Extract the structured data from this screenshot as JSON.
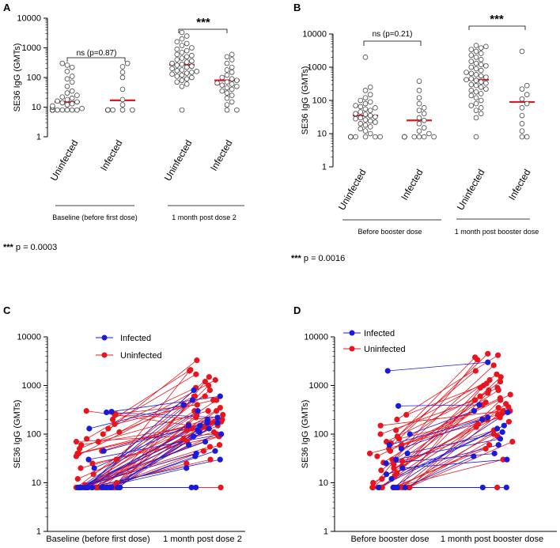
{
  "chart_data": [
    {
      "panel": "A",
      "type": "scatter",
      "ylabel": "SE36 IgG (GMTs)",
      "yscale": "log",
      "ylim": [
        1,
        10000
      ],
      "yticks": [
        "1",
        "10",
        "100",
        "1000",
        "10000"
      ],
      "categories": [
        "Uninfected",
        "Infected",
        "Uninfected",
        "Infected"
      ],
      "groups": [
        "Baseline (before first dose)",
        "1 month post dose 2"
      ],
      "medians": [
        15,
        17,
        270,
        80
      ],
      "comparisons": [
        "ns (p=0.87)",
        "***"
      ],
      "footnote": {
        "stars": "***",
        "text": " p = 0.0003"
      },
      "series": [
        {
          "name": "Uninfected",
          "values": [
            8,
            8,
            8,
            8,
            8,
            8,
            8,
            8,
            8,
            8,
            8,
            8,
            8,
            8,
            8,
            8,
            8,
            8,
            8,
            9,
            10,
            10,
            11,
            12,
            13,
            14,
            15,
            16,
            18,
            20,
            22,
            25,
            30,
            35,
            50,
            70,
            90,
            110,
            160,
            220,
            260,
            300
          ]
        },
        {
          "name": "Infected",
          "values": [
            8,
            8,
            8,
            8,
            8,
            8,
            8,
            8,
            8,
            8,
            8,
            8,
            12,
            18,
            40,
            100,
            150,
            230,
            300
          ]
        },
        {
          "name": "Uninfected",
          "values": [
            8,
            50,
            60,
            70,
            80,
            90,
            100,
            110,
            120,
            130,
            140,
            150,
            160,
            170,
            180,
            200,
            220,
            240,
            260,
            280,
            300,
            330,
            360,
            400,
            450,
            500,
            550,
            600,
            700,
            800,
            900,
            1000,
            1200,
            1400,
            1600,
            2000,
            2500,
            3300
          ]
        },
        {
          "name": "Infected",
          "values": [
            8,
            8,
            12,
            15,
            20,
            25,
            30,
            35,
            40,
            45,
            50,
            55,
            60,
            65,
            70,
            80,
            90,
            100,
            120,
            150,
            180,
            220,
            300,
            400,
            500,
            600
          ]
        }
      ]
    },
    {
      "panel": "B",
      "type": "scatter",
      "ylabel": "SE36 IgG (GMTs)",
      "yscale": "log",
      "ylim": [
        1,
        10000
      ],
      "yticks": [
        "1",
        "10",
        "100",
        "1000",
        "10000"
      ],
      "categories": [
        "Uninfected",
        "Infected",
        "Uninfected",
        "Infected"
      ],
      "groups": [
        "Before booster dose",
        "1 month post booster dose"
      ],
      "medians": [
        35,
        25,
        420,
        90
      ],
      "comparisons": [
        "ns (p=0.21)",
        "***"
      ],
      "footnote": {
        "stars": "***",
        "text": " p = 0.0016"
      },
      "series": [
        {
          "name": "Uninfected",
          "values": [
            8,
            8,
            8,
            8,
            8,
            8,
            8,
            8,
            8,
            8,
            8,
            10,
            12,
            14,
            16,
            18,
            20,
            22,
            24,
            26,
            28,
            30,
            32,
            35,
            38,
            40,
            45,
            50,
            55,
            60,
            65,
            70,
            80,
            90,
            100,
            120,
            150,
            200,
            250,
            2000
          ]
        },
        {
          "name": "Infected",
          "values": [
            8,
            8,
            8,
            8,
            8,
            8,
            8,
            8,
            8,
            8,
            10,
            12,
            15,
            20,
            25,
            30,
            40,
            50,
            60,
            80,
            120,
            200,
            380
          ]
        },
        {
          "name": "Uninfected",
          "values": [
            8,
            30,
            40,
            50,
            60,
            70,
            80,
            100,
            120,
            140,
            160,
            180,
            200,
            220,
            250,
            280,
            300,
            330,
            360,
            400,
            420,
            450,
            500,
            550,
            600,
            650,
            700,
            800,
            900,
            1000,
            1100,
            1200,
            1300,
            1500,
            1700,
            2000,
            2300,
            2600,
            3000,
            3400,
            3800,
            4200,
            4500
          ]
        },
        {
          "name": "Infected",
          "values": [
            8,
            8,
            12,
            20,
            35,
            60,
            80,
            110,
            150,
            220,
            280,
            3000
          ]
        }
      ]
    },
    {
      "panel": "C",
      "type": "line",
      "ylabel": "SE36 IgG (GMTs)",
      "yscale": "log",
      "ylim": [
        1,
        10000
      ],
      "yticks": [
        "1",
        "10",
        "100",
        "1000",
        "10000"
      ],
      "x": [
        "Baseline (before first dose)",
        "1 month post dose 2"
      ],
      "legend": [
        {
          "name": "Infected",
          "color": "#1a1adc"
        },
        {
          "name": "Uninfected",
          "color": "#e8141e"
        }
      ],
      "series": [
        {
          "name": "Infected",
          "color": "#1a1adc",
          "pairs": [
            [
              8,
              8
            ],
            [
              8,
              8
            ],
            [
              8,
              20
            ],
            [
              8,
              30
            ],
            [
              8,
              45
            ],
            [
              8,
              60
            ],
            [
              8,
              90
            ],
            [
              8,
              120
            ],
            [
              8,
              150
            ],
            [
              8,
              200
            ],
            [
              8,
              300
            ],
            [
              8,
              500
            ],
            [
              8,
              800
            ],
            [
              20,
              150
            ],
            [
              30,
              100
            ],
            [
              45,
              170
            ],
            [
              130,
              400
            ],
            [
              280,
              220
            ],
            [
              290,
              600
            ],
            [
              8,
              40
            ],
            [
              8,
              35
            ],
            [
              8,
              70
            ],
            [
              8,
              110
            ],
            [
              8,
              130
            ],
            [
              8,
              170
            ]
          ]
        },
        {
          "name": "Uninfected",
          "color": "#e8141e",
          "pairs": [
            [
              8,
              8
            ],
            [
              8,
              30
            ],
            [
              8,
              45
            ],
            [
              8,
              55
            ],
            [
              8,
              70
            ],
            [
              8,
              80
            ],
            [
              8,
              100
            ],
            [
              8,
              120
            ],
            [
              8,
              150
            ],
            [
              8,
              180
            ],
            [
              8,
              200
            ],
            [
              8,
              250
            ],
            [
              8,
              300
            ],
            [
              8,
              400
            ],
            [
              8,
              500
            ],
            [
              8,
              600
            ],
            [
              8,
              800
            ],
            [
              8,
              1000
            ],
            [
              8,
              1200
            ],
            [
              8,
              2000
            ],
            [
              8,
              25
            ],
            [
              8,
              60
            ],
            [
              8,
              90
            ],
            [
              8,
              140
            ],
            [
              8,
              170
            ],
            [
              9,
              160
            ],
            [
              10,
              220
            ],
            [
              12,
              130
            ],
            [
              15,
              300
            ],
            [
              20,
              110
            ],
            [
              25,
              90
            ],
            [
              30,
              1500
            ],
            [
              40,
              130
            ],
            [
              45,
              250
            ],
            [
              50,
              600
            ],
            [
              60,
              180
            ],
            [
              70,
              100
            ],
            [
              80,
              1700
            ],
            [
              100,
              3300
            ],
            [
              110,
              1300
            ],
            [
              130,
              900
            ],
            [
              160,
              500
            ],
            [
              200,
              2100
            ],
            [
              250,
              200
            ],
            [
              300,
              140
            ],
            [
              260,
              400
            ],
            [
              35,
              600
            ],
            [
              40,
              200
            ],
            [
              70,
              300
            ],
            [
              8,
              350
            ]
          ]
        }
      ]
    },
    {
      "panel": "D",
      "type": "line",
      "ylabel": "SE36 IgG (GMTs)",
      "yscale": "log",
      "ylim": [
        1,
        10000
      ],
      "yticks": [
        "1",
        "10",
        "100",
        "1000",
        "10000"
      ],
      "x": [
        "Before booster dose",
        "1 month post booster dose"
      ],
      "legend": [
        {
          "name": "Infected",
          "color": "#1a1adc"
        },
        {
          "name": "Uninfected",
          "color": "#e8141e"
        }
      ],
      "series": [
        {
          "name": "Infected",
          "color": "#1a1adc",
          "pairs": [
            [
              2000,
              3000
            ],
            [
              380,
              400
            ],
            [
              100,
              300
            ],
            [
              60,
              200
            ],
            [
              40,
              110
            ],
            [
              30,
              80
            ],
            [
              25,
              40
            ],
            [
              20,
              30
            ],
            [
              15,
              60
            ],
            [
              12,
              130
            ],
            [
              8,
              8
            ],
            [
              8,
              8
            ],
            [
              8,
              150
            ],
            [
              8,
              35
            ],
            [
              8,
              280
            ],
            [
              50,
              220
            ]
          ]
        },
        {
          "name": "Uninfected",
          "color": "#e8141e",
          "pairs": [
            [
              8,
              8
            ],
            [
              8,
              30
            ],
            [
              8,
              50
            ],
            [
              8,
              70
            ],
            [
              8,
              100
            ],
            [
              8,
              140
            ],
            [
              8,
              180
            ],
            [
              8,
              250
            ],
            [
              8,
              350
            ],
            [
              8,
              500
            ],
            [
              8,
              700
            ],
            [
              8,
              1000
            ],
            [
              8,
              1500
            ],
            [
              8,
              3400
            ],
            [
              10,
              200
            ],
            [
              12,
              400
            ],
            [
              14,
              600
            ],
            [
              16,
              900
            ],
            [
              18,
              1200
            ],
            [
              20,
              300
            ],
            [
              22,
              160
            ],
            [
              24,
              450
            ],
            [
              26,
              800
            ],
            [
              28,
              120
            ],
            [
              30,
              2600
            ],
            [
              35,
              550
            ],
            [
              40,
              220
            ],
            [
              45,
              1700
            ],
            [
              50,
              4500
            ],
            [
              55,
              650
            ],
            [
              60,
              360
            ],
            [
              65,
              3800
            ],
            [
              70,
              900
            ],
            [
              80,
              260
            ],
            [
              90,
              2000
            ],
            [
              100,
              500
            ],
            [
              120,
              1300
            ],
            [
              150,
              300
            ],
            [
              200,
              4200
            ],
            [
              250,
              1100
            ],
            [
              8,
              60
            ],
            [
              8,
              90
            ],
            [
              8,
              420
            ],
            [
              8,
              800
            ]
          ]
        }
      ]
    }
  ]
}
